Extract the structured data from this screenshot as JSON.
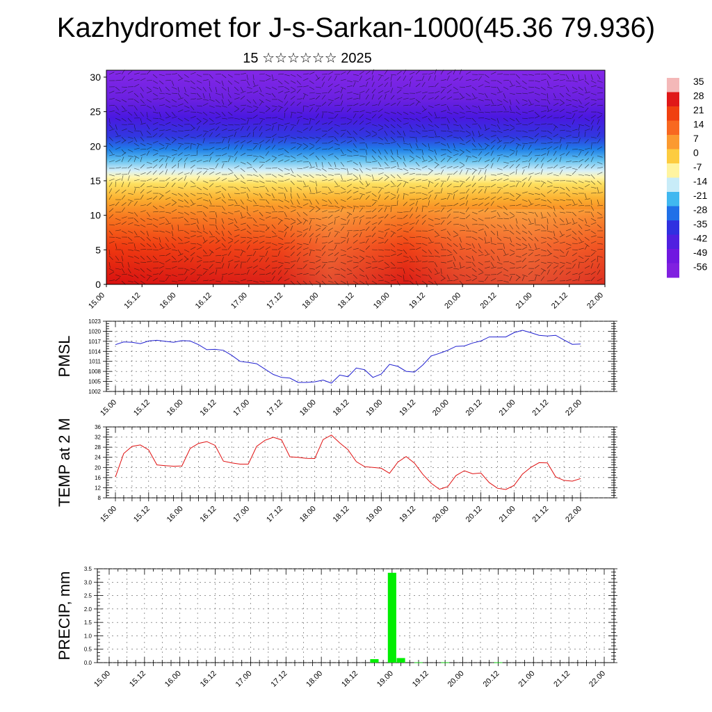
{
  "page": {
    "title": "Kazhydromet for J-s-Sarkan-1000(45.36 79.936)",
    "subtitle": "15 ☆☆☆☆☆☆ 2025"
  },
  "colors": {
    "pmsl_line": "#1f1fd0",
    "temp_line": "#e01010",
    "precip_bar": "#00ee00",
    "grid": "#555555"
  },
  "chart_data": [
    {
      "type": "heatmap",
      "title": "",
      "ylabel": "",
      "x_tick_labels": [
        "15.00",
        "15.12",
        "16.00",
        "16.12",
        "17.00",
        "17.12",
        "18.00",
        "18.12",
        "19.00",
        "19.12",
        "20.00",
        "20.12",
        "21.00",
        "21.12",
        "22.00"
      ],
      "y_ticks": [
        0,
        5,
        10,
        15,
        20,
        25,
        30
      ],
      "ylim": [
        0,
        31
      ],
      "colorbar": {
        "labels": [
          "35",
          "28",
          "21",
          "14",
          "7",
          "0",
          "-7",
          "-14",
          "-21",
          "-28",
          "-35",
          "-42",
          "-49",
          "-56"
        ],
        "colors": [
          "#f4b8b8",
          "#e01818",
          "#f04010",
          "#f86820",
          "#fb9a30",
          "#fdcc40",
          "#fff4a0",
          "#c8ecf8",
          "#40b8f0",
          "#2070e8",
          "#3030e0",
          "#5020e0",
          "#7018e0",
          "#8020e0"
        ]
      },
      "field_description": "temperature by height and time with wind barbs; warm (red) near surface, cold (blue/purple) aloft"
    },
    {
      "type": "line",
      "ylabel": "PMSL",
      "y_ticks": [
        1002,
        1005,
        1008,
        1011,
        1014,
        1017,
        1020,
        1023
      ],
      "ylim": [
        1002,
        1023
      ],
      "x_tick_labels": [
        "15.00",
        "15.12",
        "16.00",
        "16.12",
        "17.00",
        "17.12",
        "18.00",
        "18.12",
        "19.00",
        "19.12",
        "20.00",
        "20.12",
        "21.00",
        "21.12",
        "22.00"
      ],
      "x": [
        0,
        3,
        6,
        9,
        12,
        15,
        18,
        21,
        24,
        27,
        30,
        33,
        36,
        39,
        42,
        45,
        48,
        51,
        54,
        57,
        60,
        63,
        66,
        69,
        72,
        75,
        78,
        81,
        84,
        87,
        90,
        93,
        96,
        99,
        102,
        105,
        108,
        111,
        114,
        117,
        120,
        123,
        126,
        129,
        132,
        135,
        138,
        141,
        144,
        147,
        150,
        153,
        156,
        159,
        162,
        165,
        168
      ],
      "series": [
        {
          "values": [
            1016.0,
            1016.8,
            1016.7,
            1016.3,
            1017.1,
            1017.3,
            1017.0,
            1016.7,
            1017.2,
            1017.1,
            1016.0,
            1014.5,
            1014.6,
            1014.3,
            1012.8,
            1011.0,
            1010.7,
            1010.3,
            1008.7,
            1007.1,
            1006.2,
            1006.0,
            1004.7,
            1004.7,
            1004.9,
            1005.4,
            1004.5,
            1006.9,
            1006.4,
            1009.0,
            1008.5,
            1006.2,
            1007.2,
            1010.1,
            1009.5,
            1008.0,
            1007.8,
            1009.9,
            1012.6,
            1013.4,
            1014.3,
            1015.5,
            1015.6,
            1016.5,
            1017.1,
            1018.3,
            1018.3,
            1018.3,
            1019.6,
            1020.3,
            1019.6,
            1018.8,
            1018.6,
            1018.8,
            1017.4,
            1016.1,
            1016.2
          ]
        }
      ]
    },
    {
      "type": "line",
      "ylabel": "TEMP at 2 M",
      "y_ticks": [
        8,
        12,
        16,
        20,
        24,
        28,
        32,
        36
      ],
      "ylim": [
        8,
        36
      ],
      "x_tick_labels": [
        "15.00",
        "15.12",
        "16.00",
        "16.12",
        "17.00",
        "17.12",
        "18.00",
        "18.12",
        "19.00",
        "19.12",
        "20.00",
        "20.12",
        "21.00",
        "21.12",
        "22.00"
      ],
      "x": [
        0,
        3,
        6,
        9,
        12,
        15,
        18,
        21,
        24,
        27,
        30,
        33,
        36,
        39,
        42,
        45,
        48,
        51,
        54,
        57,
        60,
        63,
        66,
        69,
        72,
        75,
        78,
        81,
        84,
        87,
        90,
        93,
        96,
        99,
        102,
        105,
        108,
        111,
        114,
        117,
        120,
        123,
        126,
        129,
        132,
        135,
        138,
        141,
        144,
        147,
        150,
        153,
        156,
        159,
        162,
        165,
        168
      ],
      "series": [
        {
          "values": [
            16.2,
            25.5,
            28.3,
            28.9,
            26.9,
            21.0,
            20.7,
            20.5,
            20.6,
            27.5,
            29.5,
            30.2,
            28.7,
            22.5,
            21.8,
            21.3,
            21.3,
            28.3,
            30.7,
            31.9,
            30.9,
            24.2,
            24.0,
            23.6,
            23.5,
            31.0,
            32.8,
            29.7,
            27.0,
            22.3,
            20.3,
            20.0,
            19.7,
            17.7,
            22.1,
            24.3,
            21.7,
            17.3,
            13.8,
            11.4,
            12.4,
            16.8,
            18.7,
            17.5,
            17.8,
            14.0,
            11.8,
            11.3,
            12.9,
            17.4,
            20.0,
            21.9,
            21.8,
            16.3,
            14.9,
            14.6,
            15.6
          ]
        }
      ]
    },
    {
      "type": "bar",
      "ylabel": "PRECIP, mm",
      "y_ticks": [
        0.0,
        0.5,
        1.0,
        1.5,
        2.0,
        2.5,
        3.0,
        3.5
      ],
      "ylim": [
        0,
        3.5
      ],
      "x_tick_labels": [
        "15.00",
        "15.12",
        "16.00",
        "16.12",
        "17.00",
        "17.12",
        "18.00",
        "18.12",
        "19.00",
        "19.12",
        "20.00",
        "20.12",
        "21.00",
        "21.12",
        "22.00"
      ],
      "x": [
        90,
        96,
        99,
        105,
        114,
        132
      ],
      "values": [
        0.13,
        3.35,
        0.17,
        0.01,
        0.01,
        0.01
      ]
    }
  ]
}
